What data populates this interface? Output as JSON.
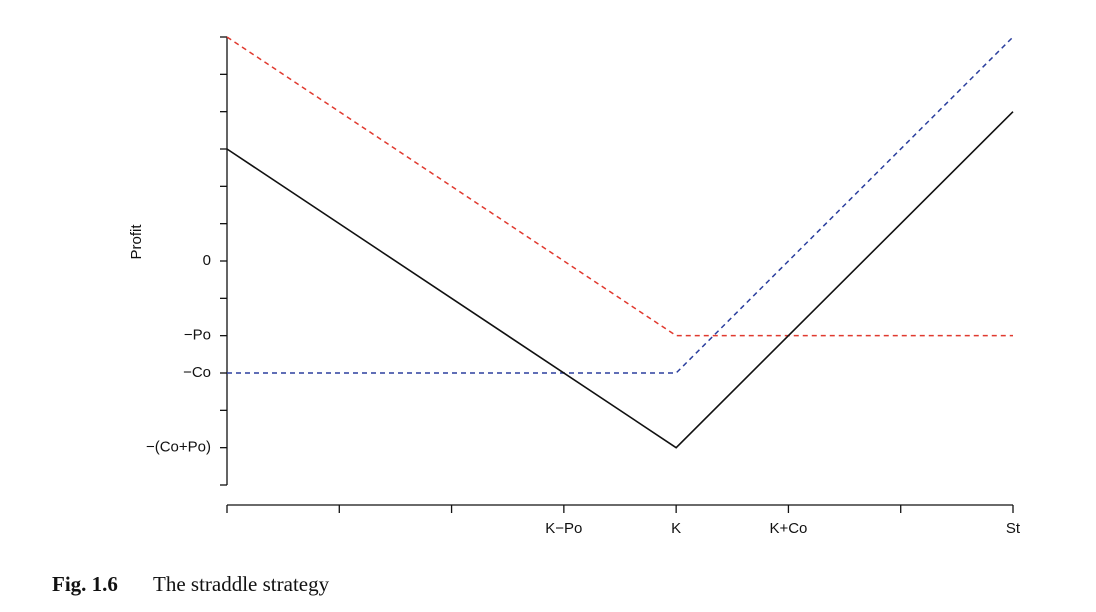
{
  "chart_data": {
    "type": "line",
    "ylabel": "Profit",
    "caption_label": "Fig. 1.6",
    "caption": "The straddle strategy",
    "xlim": [
      0,
      7
    ],
    "ylim": [
      -6,
      6
    ],
    "xticks": [
      {
        "value": 3,
        "label": "K−Po"
      },
      {
        "value": 4,
        "label": "K"
      },
      {
        "value": 5,
        "label": "K+Co"
      },
      {
        "value": 7,
        "label": "St"
      }
    ],
    "xminor_ticks": [
      0,
      1,
      2,
      6
    ],
    "yticks": [
      {
        "value": 0,
        "label": "0"
      },
      {
        "value": -2,
        "label": "−Po"
      },
      {
        "value": -3,
        "label": "−Co"
      },
      {
        "value": -5,
        "label": "−(Co+Po)"
      }
    ],
    "yminor_ticks": [
      6,
      5,
      4,
      3,
      2,
      1,
      -1,
      -4,
      -6
    ],
    "x": [
      0,
      4,
      7
    ],
    "series": [
      {
        "color": "#e03a2f",
        "dashed": true,
        "values": [
          6,
          -2,
          -2
        ]
      },
      {
        "color": "#2b3f9e",
        "dashed": true,
        "values": [
          -3,
          -3,
          6
        ]
      },
      {
        "color": "#111111",
        "dashed": false,
        "values": [
          3,
          -5,
          4
        ]
      }
    ]
  }
}
